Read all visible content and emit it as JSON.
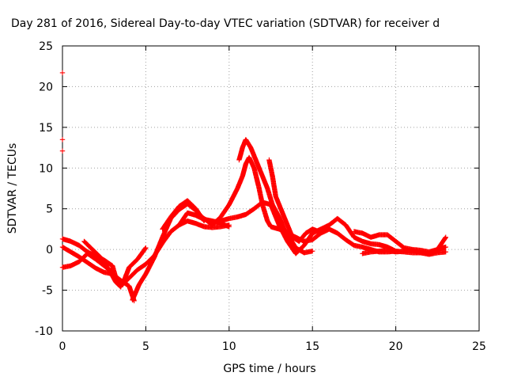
{
  "chart_data": {
    "type": "scatter",
    "title": "Day 281 of 2016, Sidereal Day-to-day VTEC variation (SDTVAR) for receiver d",
    "xlabel": "GPS time / hours",
    "ylabel": "SDTVAR / TECUs",
    "xlim": [
      0,
      25
    ],
    "ylim": [
      -10,
      25
    ],
    "xticks": [
      "0",
      "5",
      "10",
      "15",
      "20",
      "25"
    ],
    "yticks": [
      "-10",
      "-5",
      "0",
      "5",
      "10",
      "15",
      "20",
      "25"
    ],
    "grid": true,
    "legend": "none",
    "series_color": "#ff0000",
    "series": [
      {
        "points": [
          [
            0.0,
            -2.2
          ],
          [
            0.5,
            -2.0
          ],
          [
            1.0,
            -1.5
          ],
          [
            1.5,
            -0.5
          ],
          [
            2.0,
            -1.2
          ],
          [
            2.5,
            -2.0
          ],
          [
            3.0,
            -2.8
          ],
          [
            3.5,
            -4.5
          ],
          [
            4.0,
            -3.5
          ],
          [
            4.5,
            -2.5
          ],
          [
            5.0,
            -1.8
          ],
          [
            5.5,
            -0.8
          ],
          [
            6.0,
            0.8
          ],
          [
            6.5,
            2.2
          ],
          [
            7.0,
            3.0
          ],
          [
            7.5,
            3.5
          ],
          [
            8.0,
            3.2
          ],
          [
            8.5,
            2.8
          ],
          [
            9.0,
            2.7
          ],
          [
            9.5,
            2.8
          ],
          [
            10.0,
            3.0
          ]
        ]
      },
      {
        "points": [
          [
            0.0,
            1.3
          ],
          [
            0.5,
            1.0
          ],
          [
            1.0,
            0.5
          ],
          [
            1.5,
            -0.3
          ],
          [
            2.0,
            -0.8
          ],
          [
            2.5,
            -1.3
          ],
          [
            3.0,
            -2.0
          ],
          [
            3.3,
            -4.2
          ],
          [
            3.7,
            -3.8
          ],
          [
            4.0,
            -2.2
          ],
          [
            4.5,
            -1.2
          ],
          [
            5.0,
            0.2
          ]
        ]
      },
      {
        "points": [
          [
            0.0,
            0.3
          ],
          [
            0.5,
            -0.3
          ],
          [
            1.0,
            -0.9
          ],
          [
            1.5,
            -1.6
          ],
          [
            2.0,
            -2.3
          ],
          [
            2.5,
            -2.8
          ],
          [
            3.0,
            -3.0
          ],
          [
            3.5,
            -3.8
          ],
          [
            4.0,
            -4.5
          ],
          [
            4.3,
            -6.3
          ]
        ]
      },
      {
        "points": [
          [
            1.3,
            1.0
          ],
          [
            1.8,
            0.0
          ],
          [
            2.3,
            -1.0
          ],
          [
            2.8,
            -2.5
          ],
          [
            3.2,
            -4.0
          ],
          [
            3.5,
            -4.6
          ]
        ]
      },
      {
        "points": [
          [
            4.2,
            -6.2
          ],
          [
            4.6,
            -4.3
          ],
          [
            5.0,
            -3.0
          ],
          [
            5.5,
            -1.0
          ],
          [
            6.0,
            1.5
          ],
          [
            6.5,
            3.8
          ],
          [
            7.0,
            4.9
          ],
          [
            7.5,
            5.6
          ],
          [
            8.0,
            4.8
          ],
          [
            8.5,
            3.7
          ],
          [
            9.0,
            3.4
          ],
          [
            9.5,
            3.5
          ],
          [
            10.0,
            3.8
          ],
          [
            10.5,
            4.0
          ],
          [
            11.0,
            4.3
          ],
          [
            11.5,
            5.0
          ],
          [
            12.0,
            5.8
          ],
          [
            12.5,
            5.5
          ],
          [
            13.0,
            3.0
          ],
          [
            13.5,
            1.0
          ],
          [
            14.0,
            -0.5
          ],
          [
            14.5,
            0.5
          ],
          [
            15.0,
            2.0
          ],
          [
            15.5,
            2.5
          ],
          [
            16.0,
            3.0
          ],
          [
            16.5,
            3.8
          ],
          [
            17.0,
            3.0
          ],
          [
            17.5,
            1.5
          ],
          [
            18.0,
            1.0
          ],
          [
            18.5,
            0.7
          ],
          [
            19.0,
            0.6
          ],
          [
            19.5,
            0.3
          ],
          [
            20.0,
            -0.2
          ],
          [
            20.5,
            -0.3
          ],
          [
            21.0,
            -0.4
          ],
          [
            21.5,
            -0.4
          ],
          [
            22.0,
            -0.5
          ],
          [
            22.3,
            -0.3
          ],
          [
            22.8,
            0.2
          ],
          [
            23.0,
            0.3
          ]
        ]
      },
      {
        "points": [
          [
            6.0,
            2.5
          ],
          [
            6.5,
            4.0
          ],
          [
            7.0,
            5.3
          ],
          [
            7.5,
            6.0
          ],
          [
            8.0,
            5.0
          ],
          [
            8.5,
            3.5
          ]
        ]
      },
      {
        "points": [
          [
            8.0,
            4.5
          ],
          [
            8.5,
            3.8
          ],
          [
            9.0,
            3.0
          ],
          [
            9.5,
            4.0
          ],
          [
            10.0,
            5.5
          ],
          [
            10.5,
            7.5
          ],
          [
            10.8,
            9.0
          ],
          [
            11.0,
            10.5
          ],
          [
            11.2,
            11.3
          ],
          [
            11.5,
            10.0
          ],
          [
            11.8,
            7.5
          ],
          [
            12.0,
            5.5
          ],
          [
            12.3,
            3.5
          ],
          [
            12.5,
            2.8
          ],
          [
            13.0,
            2.5
          ],
          [
            13.5,
            2.0
          ],
          [
            14.0,
            1.5
          ],
          [
            14.5,
            1.0
          ],
          [
            15.0,
            1.2
          ],
          [
            15.5,
            2.0
          ],
          [
            16.0,
            2.5
          ],
          [
            16.5,
            2.0
          ],
          [
            17.0,
            1.2
          ],
          [
            17.5,
            0.5
          ],
          [
            18.0,
            0.3
          ],
          [
            18.5,
            0.0
          ],
          [
            19.0,
            -0.3
          ],
          [
            19.5,
            -0.3
          ],
          [
            20.0,
            -0.2
          ]
        ]
      },
      {
        "points": [
          [
            10.6,
            11.0
          ],
          [
            10.8,
            12.5
          ],
          [
            11.0,
            13.5
          ],
          [
            11.3,
            12.5
          ],
          [
            11.7,
            10.5
          ],
          [
            12.0,
            9.0
          ],
          [
            12.3,
            7.5
          ],
          [
            12.6,
            5.5
          ],
          [
            13.0,
            4.0
          ],
          [
            13.3,
            2.5
          ],
          [
            13.7,
            1.2
          ],
          [
            14.0,
            0.2
          ],
          [
            14.5,
            -0.4
          ],
          [
            15.0,
            -0.2
          ]
        ]
      },
      {
        "points": [
          [
            12.4,
            11.0
          ],
          [
            12.6,
            9.0
          ],
          [
            12.8,
            6.5
          ],
          [
            13.2,
            4.5
          ],
          [
            13.5,
            3.0
          ],
          [
            13.8,
            1.5
          ],
          [
            14.2,
            1.0
          ],
          [
            14.6,
            2.0
          ],
          [
            15.0,
            2.5
          ],
          [
            15.4,
            2.2
          ]
        ]
      },
      {
        "points": [
          [
            7.0,
            3.0
          ],
          [
            7.5,
            4.5
          ],
          [
            8.0,
            4.2
          ],
          [
            8.5,
            3.7
          ],
          [
            9.0,
            3.5
          ],
          [
            9.5,
            3.2
          ],
          [
            10.0,
            2.8
          ]
        ]
      },
      {
        "points": [
          [
            17.5,
            2.2
          ],
          [
            18.0,
            2.0
          ],
          [
            18.5,
            1.5
          ],
          [
            19.0,
            1.8
          ],
          [
            19.5,
            1.8
          ],
          [
            20.0,
            1.0
          ],
          [
            20.5,
            0.2
          ],
          [
            21.0,
            0.0
          ],
          [
            21.5,
            -0.1
          ],
          [
            22.0,
            -0.3
          ],
          [
            22.5,
            0.0
          ],
          [
            23.0,
            1.5
          ]
        ]
      },
      {
        "points": [
          [
            18.0,
            -0.5
          ],
          [
            18.5,
            -0.3
          ],
          [
            19.0,
            -0.2
          ],
          [
            19.5,
            -0.1
          ],
          [
            20.0,
            -0.3
          ],
          [
            20.5,
            -0.2
          ],
          [
            21.0,
            -0.1
          ],
          [
            21.5,
            -0.4
          ],
          [
            22.0,
            -0.6
          ],
          [
            22.5,
            -0.4
          ],
          [
            23.0,
            -0.3
          ]
        ]
      },
      {
        "points": [
          [
            0.0,
            21.7
          ]
        ]
      },
      {
        "points": [
          [
            0.0,
            13.5
          ]
        ]
      },
      {
        "points": [
          [
            0.0,
            12.1
          ]
        ]
      }
    ]
  }
}
